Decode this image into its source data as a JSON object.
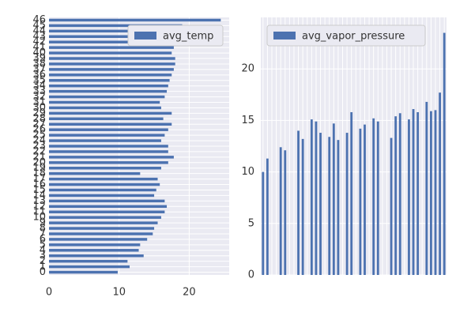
{
  "chart_data": [
    {
      "type": "barh",
      "categories": [
        "0",
        "1",
        "2",
        "3",
        "4",
        "5",
        "6",
        "7",
        "8",
        "9",
        "10",
        "11",
        "12",
        "13",
        "14",
        "15",
        "16",
        "17",
        "18",
        "19",
        "20",
        "21",
        "22",
        "23",
        "24",
        "25",
        "26",
        "27",
        "28",
        "29",
        "30",
        "31",
        "32",
        "33",
        "34",
        "35",
        "36",
        "37",
        "38",
        "39",
        "40",
        "41",
        "42",
        "43",
        "44",
        "45",
        "46"
      ],
      "series": [
        {
          "name": "avg_temp",
          "color": "#4c72b0",
          "values": [
            9.8,
            11.5,
            11.2,
            13.5,
            12.8,
            13,
            14,
            14.8,
            15,
            15.5,
            16,
            16.5,
            16.8,
            16.5,
            15,
            15.3,
            15.8,
            15.5,
            13,
            16,
            17,
            17.8,
            17,
            17,
            16,
            16.5,
            17,
            17.5,
            16.3,
            17.5,
            16,
            15.8,
            16.5,
            16.8,
            17,
            17.2,
            17.5,
            17.8,
            18,
            18,
            17.5,
            17.8,
            17,
            18,
            18.5,
            19,
            24.5
          ]
        }
      ],
      "xlim": [
        0,
        25.7
      ],
      "xticks": [
        0,
        10,
        20
      ],
      "grid": true,
      "legend": "upper right"
    },
    {
      "type": "bar",
      "categories": [
        null,
        null,
        null,
        null,
        null,
        null,
        null,
        null,
        null,
        null,
        null,
        null,
        null,
        null,
        null,
        null,
        null,
        null,
        null,
        null,
        null,
        null,
        null,
        null,
        null,
        null,
        null,
        null,
        null,
        null,
        null,
        null,
        null,
        null,
        null,
        null,
        null,
        null,
        null,
        null,
        null,
        null
      ],
      "series": [
        {
          "name": "avg_vapor_pressure",
          "color": "#4c72b0",
          "values": [
            10,
            11.3,
            null,
            null,
            12.4,
            12.1,
            null,
            null,
            14,
            13.2,
            null,
            15.1,
            14.9,
            13.8,
            null,
            13.4,
            14.7,
            13.1,
            null,
            13.8,
            15.8,
            null,
            14.2,
            14.6,
            null,
            15.2,
            14.9,
            null,
            null,
            13.3,
            15.4,
            15.7,
            null,
            15.1,
            16.1,
            15.8,
            null,
            16.8,
            15.9,
            16,
            17.7,
            23.5
          ]
        }
      ],
      "ylim": [
        0,
        25
      ],
      "yticks": [
        0,
        5,
        10,
        15,
        20
      ],
      "grid": true,
      "legend": "upper left"
    }
  ]
}
